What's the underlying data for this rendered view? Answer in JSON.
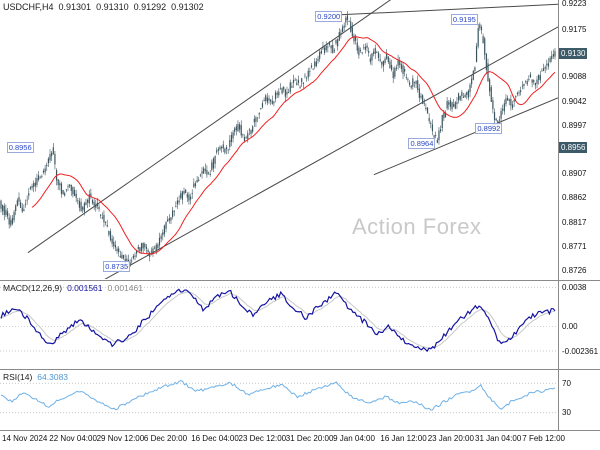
{
  "title": {
    "symbol": "USDCHF,H4",
    "open": "0.91301",
    "high": "0.91310",
    "low": "0.91292",
    "close": "0.91302"
  },
  "watermark": "Action Forex",
  "colors": {
    "candle": "#3a545e",
    "ma": "#f02020",
    "trendline": "#4a4a4a",
    "macd_line": "#1313a0",
    "macd_signal": "#c8c8c8",
    "rsi_line": "#6fb1e8",
    "grid_dotted": "#b8b8b8"
  },
  "time_axis": [
    "14 Nov 2024",
    "22 Nov 04:00",
    "29 Nov 12:00",
    "6 Dec 20:00",
    "16 Dec 04:00",
    "23 Dec 12:00",
    "31 Dec 20:00",
    "9 Jan 04:00",
    "16 Jan 12:00",
    "23 Jan 20:00",
    "31 Jan 04:00",
    "7 Feb 12:00"
  ],
  "chart_data": [
    {
      "type": "candlestick",
      "title": "USDCHF H4 candlestick price chart",
      "y_range": [
        0.8711,
        0.923
      ],
      "candles": 340,
      "ma_period": 20,
      "axis_labels": [
        0.9223,
        0.9175,
        0.9088,
        0.9042,
        0.8997,
        0.8907,
        0.8862,
        0.8817,
        0.8771,
        0.8726
      ],
      "highlighted_levels": [
        {
          "value": 0.913,
          "label": "0.9130"
        },
        {
          "value": 0.8956,
          "label": "0.8956"
        }
      ],
      "annotations": [
        {
          "label": "0.8956",
          "x": 0.012,
          "price": 0.8956
        },
        {
          "label": "0.8735",
          "x": 0.185,
          "price": 0.8735
        },
        {
          "label": "0.9200",
          "x": 0.565,
          "price": 0.92
        },
        {
          "label": "0.8964",
          "x": 0.732,
          "price": 0.8964
        },
        {
          "label": "0.9195",
          "x": 0.808,
          "price": 0.9195
        },
        {
          "label": "0.8992",
          "x": 0.852,
          "price": 0.8992
        }
      ],
      "trendlines": [
        {
          "x1": 0.05,
          "p1": 0.876,
          "x2": 0.72,
          "p2": 0.9245
        },
        {
          "x1": 0.17,
          "p1": 0.87,
          "x2": 1.0,
          "p2": 0.918
        },
        {
          "x1": 0.6,
          "p1": 0.9202,
          "x2": 1.0,
          "p2": 0.9222
        },
        {
          "x1": 0.67,
          "p1": 0.8905,
          "x2": 1.0,
          "p2": 0.9048
        }
      ],
      "price_path": [
        [
          0.0,
          0.8852
        ],
        [
          0.012,
          0.883
        ],
        [
          0.02,
          0.8812
        ],
        [
          0.032,
          0.8858
        ],
        [
          0.042,
          0.884
        ],
        [
          0.055,
          0.8878
        ],
        [
          0.068,
          0.8895
        ],
        [
          0.082,
          0.8915
        ],
        [
          0.095,
          0.8952
        ],
        [
          0.104,
          0.8895
        ],
        [
          0.115,
          0.8868
        ],
        [
          0.126,
          0.8886
        ],
        [
          0.138,
          0.8858
        ],
        [
          0.15,
          0.884
        ],
        [
          0.162,
          0.8864
        ],
        [
          0.175,
          0.8848
        ],
        [
          0.19,
          0.8815
        ],
        [
          0.205,
          0.8775
        ],
        [
          0.22,
          0.8752
        ],
        [
          0.235,
          0.8737
        ],
        [
          0.248,
          0.8762
        ],
        [
          0.26,
          0.8778
        ],
        [
          0.27,
          0.8755
        ],
        [
          0.282,
          0.8772
        ],
        [
          0.295,
          0.8798
        ],
        [
          0.308,
          0.8828
        ],
        [
          0.32,
          0.8852
        ],
        [
          0.332,
          0.8872
        ],
        [
          0.342,
          0.8862
        ],
        [
          0.355,
          0.8892
        ],
        [
          0.368,
          0.8918
        ],
        [
          0.378,
          0.8905
        ],
        [
          0.39,
          0.8942
        ],
        [
          0.4,
          0.8962
        ],
        [
          0.41,
          0.8948
        ],
        [
          0.422,
          0.8985
        ],
        [
          0.432,
          0.8996
        ],
        [
          0.442,
          0.8972
        ],
        [
          0.455,
          0.8992
        ],
        [
          0.468,
          0.9022
        ],
        [
          0.48,
          0.9048
        ],
        [
          0.492,
          0.9038
        ],
        [
          0.505,
          0.9066
        ],
        [
          0.518,
          0.9055
        ],
        [
          0.53,
          0.908
        ],
        [
          0.542,
          0.9072
        ],
        [
          0.555,
          0.9092
        ],
        [
          0.568,
          0.9112
        ],
        [
          0.58,
          0.9132
        ],
        [
          0.592,
          0.915
        ],
        [
          0.602,
          0.9136
        ],
        [
          0.615,
          0.917
        ],
        [
          0.628,
          0.9198
        ],
        [
          0.64,
          0.9158
        ],
        [
          0.65,
          0.9128
        ],
        [
          0.66,
          0.9148
        ],
        [
          0.67,
          0.9118
        ],
        [
          0.68,
          0.9142
        ],
        [
          0.69,
          0.9105
        ],
        [
          0.7,
          0.9126
        ],
        [
          0.71,
          0.9088
        ],
        [
          0.72,
          0.9112
        ],
        [
          0.73,
          0.9094
        ],
        [
          0.74,
          0.9068
        ],
        [
          0.75,
          0.9084
        ],
        [
          0.76,
          0.9048
        ],
        [
          0.77,
          0.9028
        ],
        [
          0.78,
          0.8988
        ],
        [
          0.79,
          0.8966
        ],
        [
          0.8,
          0.9012
        ],
        [
          0.81,
          0.904
        ],
        [
          0.82,
          0.9026
        ],
        [
          0.83,
          0.9054
        ],
        [
          0.84,
          0.9046
        ],
        [
          0.85,
          0.9068
        ],
        [
          0.858,
          0.9104
        ],
        [
          0.866,
          0.9192
        ],
        [
          0.874,
          0.9148
        ],
        [
          0.882,
          0.9082
        ],
        [
          0.89,
          0.903
        ],
        [
          0.898,
          0.8994
        ],
        [
          0.906,
          0.9022
        ],
        [
          0.916,
          0.9046
        ],
        [
          0.926,
          0.9035
        ],
        [
          0.936,
          0.906
        ],
        [
          0.946,
          0.9076
        ],
        [
          0.956,
          0.9086
        ],
        [
          0.966,
          0.9068
        ],
        [
          0.978,
          0.9096
        ],
        [
          0.99,
          0.9114
        ],
        [
          1.0,
          0.913
        ]
      ]
    },
    {
      "type": "line",
      "indicator": "MACD(12,26,9)",
      "values": [
        "0.001561",
        "0.001461"
      ],
      "y_range": [
        -0.004,
        0.0044
      ],
      "axis_labels": [
        {
          "value": 0.0038,
          "label": "0.0038"
        },
        {
          "value": 0.0,
          "label": "0.00"
        },
        {
          "value": -0.002361,
          "label": "-0.002361"
        }
      ],
      "path": [
        [
          0.0,
          0.001
        ],
        [
          0.025,
          0.0018
        ],
        [
          0.055,
          0.0004
        ],
        [
          0.085,
          -0.0019
        ],
        [
          0.11,
          -0.0007
        ],
        [
          0.14,
          0.0007
        ],
        [
          0.17,
          -0.0006
        ],
        [
          0.2,
          -0.0017
        ],
        [
          0.23,
          -0.0011
        ],
        [
          0.26,
          0.0007
        ],
        [
          0.29,
          0.0023
        ],
        [
          0.32,
          0.0036
        ],
        [
          0.345,
          0.0031
        ],
        [
          0.365,
          0.0016
        ],
        [
          0.385,
          0.0028
        ],
        [
          0.41,
          0.0035
        ],
        [
          0.435,
          0.0021
        ],
        [
          0.455,
          0.001
        ],
        [
          0.475,
          0.0022
        ],
        [
          0.505,
          0.0031
        ],
        [
          0.53,
          0.0018
        ],
        [
          0.55,
          0.0008
        ],
        [
          0.575,
          0.002
        ],
        [
          0.605,
          0.0033
        ],
        [
          0.63,
          0.0016
        ],
        [
          0.655,
          0.0005
        ],
        [
          0.68,
          -0.0008
        ],
        [
          0.7,
          0.0001
        ],
        [
          0.72,
          -0.0012
        ],
        [
          0.745,
          -0.0018
        ],
        [
          0.775,
          -0.0023
        ],
        [
          0.8,
          -0.0009
        ],
        [
          0.825,
          0.0006
        ],
        [
          0.845,
          0.0013
        ],
        [
          0.865,
          0.0022
        ],
        [
          0.885,
          0.0001
        ],
        [
          0.902,
          -0.0019
        ],
        [
          0.92,
          -0.0011
        ],
        [
          0.94,
          0.0002
        ],
        [
          0.96,
          0.001
        ],
        [
          0.98,
          0.0014
        ],
        [
          1.0,
          0.00156
        ]
      ]
    },
    {
      "type": "line",
      "indicator": "RSI(14)",
      "values": [
        "64.3083"
      ],
      "y_range": [
        8,
        88
      ],
      "axis_labels": [
        {
          "value": 70,
          "label": "70"
        },
        {
          "value": 30,
          "label": "30"
        }
      ],
      "path": [
        [
          0.0,
          54
        ],
        [
          0.02,
          45
        ],
        [
          0.04,
          57
        ],
        [
          0.06,
          50
        ],
        [
          0.085,
          38
        ],
        [
          0.115,
          52
        ],
        [
          0.145,
          60
        ],
        [
          0.175,
          45
        ],
        [
          0.205,
          34
        ],
        [
          0.235,
          47
        ],
        [
          0.265,
          57
        ],
        [
          0.295,
          66
        ],
        [
          0.325,
          72
        ],
        [
          0.355,
          59
        ],
        [
          0.385,
          66
        ],
        [
          0.415,
          70
        ],
        [
          0.445,
          55
        ],
        [
          0.475,
          62
        ],
        [
          0.505,
          68
        ],
        [
          0.535,
          52
        ],
        [
          0.57,
          62
        ],
        [
          0.605,
          70
        ],
        [
          0.635,
          50
        ],
        [
          0.665,
          44
        ],
        [
          0.695,
          52
        ],
        [
          0.72,
          42
        ],
        [
          0.748,
          46
        ],
        [
          0.775,
          33
        ],
        [
          0.8,
          45
        ],
        [
          0.825,
          55
        ],
        [
          0.848,
          60
        ],
        [
          0.866,
          67
        ],
        [
          0.885,
          48
        ],
        [
          0.902,
          34
        ],
        [
          0.92,
          45
        ],
        [
          0.94,
          52
        ],
        [
          0.96,
          57
        ],
        [
          0.98,
          60
        ],
        [
          1.0,
          64.3
        ]
      ]
    }
  ]
}
